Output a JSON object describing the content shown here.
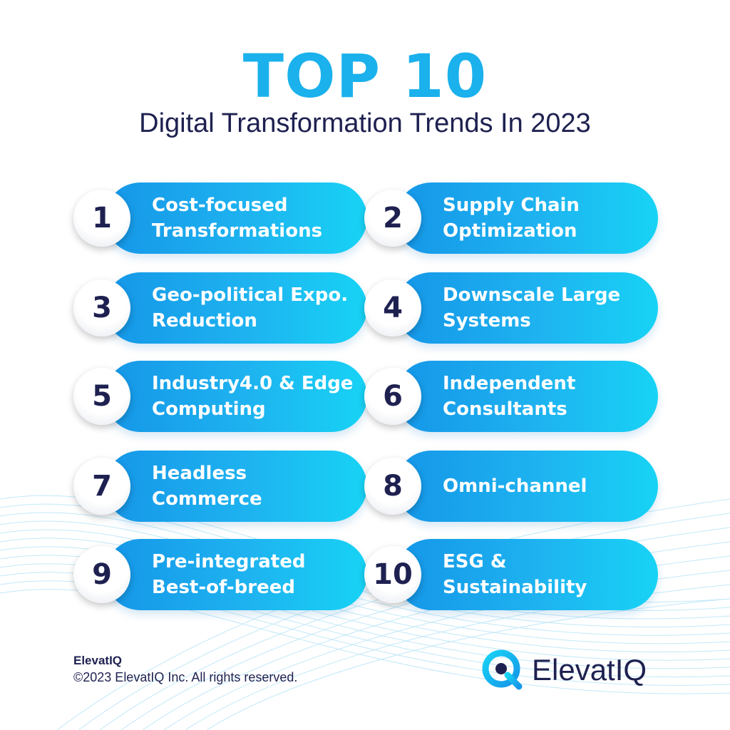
{
  "header": {
    "title": "TOP 10",
    "subtitle": "Digital Transformation Trends In 2023"
  },
  "trends": [
    {
      "number": "1",
      "label": "Cost-focused\nTransformations"
    },
    {
      "number": "2",
      "label": "Supply Chain\nOptimization"
    },
    {
      "number": "3",
      "label": "Geo-political Expo.\nReduction"
    },
    {
      "number": "4",
      "label": "Downscale Large\nSystems"
    },
    {
      "number": "5",
      "label": "Industry4.0 & Edge\nComputing"
    },
    {
      "number": "6",
      "label": "Independent\nConsultants"
    },
    {
      "number": "7",
      "label": "Headless\nCommerce"
    },
    {
      "number": "8",
      "label": "Omni-channel"
    },
    {
      "number": "9",
      "label": "Pre-integrated\nBest-of-breed"
    },
    {
      "number": "10",
      "label": "ESG &\nSustainability"
    }
  ],
  "footer": {
    "brand": "ElevatIQ",
    "copyright": "©2023 ElevatIQ Inc. All rights reserved."
  },
  "logo": {
    "text": "ElevatIQ",
    "icon": "elevatiq-q-logo-icon"
  },
  "colors": {
    "accent": "#1ab1ec",
    "navy": "#1e2150",
    "pill_start": "#1596e8",
    "pill_end": "#17d3f5"
  }
}
